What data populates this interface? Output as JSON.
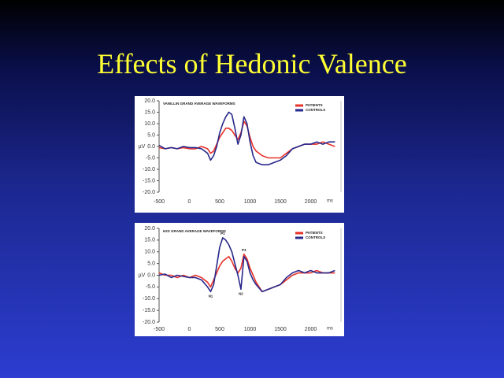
{
  "title": "Effects of Hedonic Valence",
  "chart_data": [
    {
      "type": "line",
      "title": "VANILLIN GRAND AVERAGE WAVEFORMS",
      "xlabel": "ms",
      "ylabel": "µV",
      "x": [
        -500,
        -400,
        -300,
        -200,
        -100,
        0,
        100,
        200,
        300,
        350,
        400,
        450,
        500,
        550,
        600,
        650,
        700,
        750,
        800,
        850,
        900,
        950,
        1000,
        1050,
        1100,
        1200,
        1300,
        1400,
        1500,
        1600,
        1700,
        1800,
        1900,
        2000,
        2100,
        2200,
        2300,
        2400
      ],
      "series": [
        {
          "name": "PATIENTS",
          "color": "#e8322a",
          "values": [
            -0.5,
            -1,
            -0.5,
            -1,
            -0.5,
            -1,
            -1,
            0,
            -1,
            -3,
            -2,
            1,
            4,
            6,
            8,
            8,
            7,
            5,
            3,
            6,
            11,
            9,
            4,
            0,
            -2,
            -4,
            -5,
            -5,
            -5,
            -3,
            -1,
            0,
            1,
            1,
            1,
            2,
            1,
            0
          ]
        },
        {
          "name": "CONTROLS",
          "color": "#28288c",
          "values": [
            0.5,
            -1,
            -0.5,
            -1,
            0,
            -0.5,
            -0.5,
            -1,
            -3,
            -6,
            -4,
            0,
            6,
            10,
            13,
            15,
            14,
            8,
            1,
            5,
            13,
            10,
            2,
            -4,
            -7,
            -8,
            -8,
            -7,
            -6,
            -4,
            -1,
            0,
            1,
            1,
            2,
            1,
            2,
            2
          ]
        }
      ],
      "xlim": [
        -500,
        2500
      ],
      "xticks": [
        -500,
        0,
        500,
        1000,
        1500,
        2000
      ],
      "ylim": [
        -20,
        20
      ],
      "yticks": [
        {
          "value": 20,
          "label": "20.0"
        },
        {
          "value": 15,
          "label": "15.0"
        },
        {
          "value": 10,
          "label": "10.0"
        },
        {
          "value": 5,
          "label": "5.0"
        },
        {
          "value": 0,
          "label": "0.0"
        },
        {
          "value": -5,
          "label": "-5.0"
        },
        {
          "value": -10,
          "label": "-10.0"
        },
        {
          "value": -15,
          "label": "-15.0"
        },
        {
          "value": -20,
          "label": "-20.0"
        }
      ],
      "grid": false,
      "legend": "top-right"
    },
    {
      "type": "line",
      "title": "H2S GRAND AVERAGE WAVEFORMS",
      "xlabel": "ms",
      "ylabel": "µV",
      "x": [
        -500,
        -400,
        -300,
        -200,
        -100,
        0,
        100,
        200,
        300,
        350,
        400,
        450,
        500,
        550,
        600,
        650,
        700,
        750,
        800,
        850,
        900,
        950,
        1000,
        1050,
        1100,
        1200,
        1300,
        1400,
        1500,
        1600,
        1700,
        1800,
        1900,
        2000,
        2100,
        2200,
        2300,
        2400
      ],
      "series": [
        {
          "name": "PATIENTS",
          "color": "#e8322a",
          "values": [
            1,
            0,
            0,
            -1,
            0,
            -1,
            0,
            -1,
            -3,
            -5,
            -2,
            1,
            4,
            6,
            7,
            8,
            6,
            3,
            1,
            3,
            9,
            7,
            3,
            0,
            -3,
            -7,
            -6,
            -5,
            -4,
            -2,
            0,
            1,
            1,
            1,
            2,
            1,
            1,
            1
          ]
        },
        {
          "name": "CONTROLS",
          "color": "#28288c",
          "values": [
            0,
            0.5,
            -1,
            0,
            -0.5,
            -1,
            -1,
            -2,
            -5,
            -7,
            -4,
            4,
            12,
            16,
            15,
            13,
            10,
            5,
            0,
            -6,
            8,
            6,
            1,
            -2,
            -4,
            -7,
            -6,
            -5,
            -4,
            -1,
            1,
            2,
            1,
            2,
            1,
            1,
            1,
            2
          ]
        }
      ],
      "xlim": [
        -500,
        2500
      ],
      "xticks": [
        -500,
        0,
        500,
        1000,
        1500,
        2000
      ],
      "ylim": [
        -20,
        20
      ],
      "yticks": [
        {
          "value": 20,
          "label": "20.0"
        },
        {
          "value": 15,
          "label": "15.0"
        },
        {
          "value": 10,
          "label": "10.0"
        },
        {
          "value": 5,
          "label": "5.0"
        },
        {
          "value": 0,
          "label": "0.0"
        },
        {
          "value": -5,
          "label": "-5.0"
        },
        {
          "value": -10,
          "label": "-10.0"
        },
        {
          "value": -15,
          "label": "-15.0"
        },
        {
          "value": -20,
          "label": "-20.0"
        }
      ],
      "annotations": [
        {
          "text": "P1",
          "x": 550,
          "y": 16
        },
        {
          "text": "P3",
          "x": 900,
          "y": 9
        },
        {
          "text": "N1",
          "x": 350,
          "y": -7
        },
        {
          "text": "N2",
          "x": 850,
          "y": -6
        }
      ],
      "grid": false,
      "legend": "top-right"
    }
  ]
}
